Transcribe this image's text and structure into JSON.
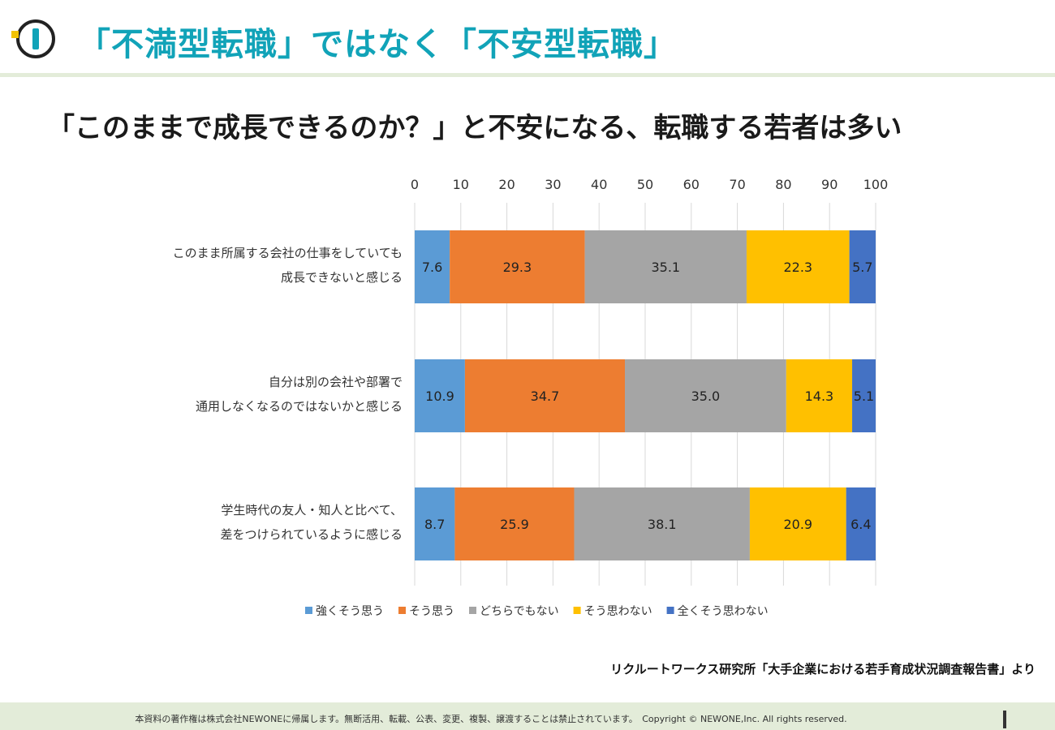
{
  "header": {
    "title": "「不満型転職」ではなく「不安型転職」",
    "accent_color": "#11a3b8"
  },
  "subtitle": "「このままで成長できるのか？」と不安になる、転職する若者は多い",
  "chart_data": {
    "type": "bar",
    "orientation": "horizontal",
    "stacked": true,
    "categories": [
      [
        "このまま所属する会社の仕事をしていても",
        "成長できないと感じる"
      ],
      [
        "自分は別の会社や部署で",
        "通用しなくなるのではないかと感じる"
      ],
      [
        "学生時代の友人・知人と比べて、",
        "差をつけられているように感じる"
      ]
    ],
    "series": [
      {
        "name": "強くそう思う",
        "color": "#5b9bd5",
        "values": [
          7.6,
          10.9,
          8.7
        ]
      },
      {
        "name": "そう思う",
        "color": "#ed7d31",
        "values": [
          29.3,
          34.7,
          25.9
        ]
      },
      {
        "name": "どちらでもない",
        "color": "#a5a5a5",
        "values": [
          35.1,
          35.0,
          38.1
        ]
      },
      {
        "name": "そう思わない",
        "color": "#ffc000",
        "values": [
          22.3,
          14.3,
          20.9
        ]
      },
      {
        "name": "全くそう思わない",
        "color": "#4472c4",
        "values": [
          5.7,
          5.1,
          6.4
        ]
      }
    ],
    "xlim": [
      0,
      100
    ],
    "ticks": [
      "0",
      "10",
      "20",
      "30",
      "40",
      "50",
      "60",
      "70",
      "80",
      "90",
      "100"
    ],
    "axis_position": "top",
    "grid": true,
    "legend_position": "bottom"
  },
  "source": "リクルートワークス研究所「大手企業における若手育成状況調査報告書」より",
  "footer": {
    "copyright": "本資料の著作権は株式会社NEWONEに帰属します。無断活用、転載、公表、変更、複製、譲渡することは禁止されています。　Copyright © NEWONE,Inc.  All rights reserved."
  }
}
